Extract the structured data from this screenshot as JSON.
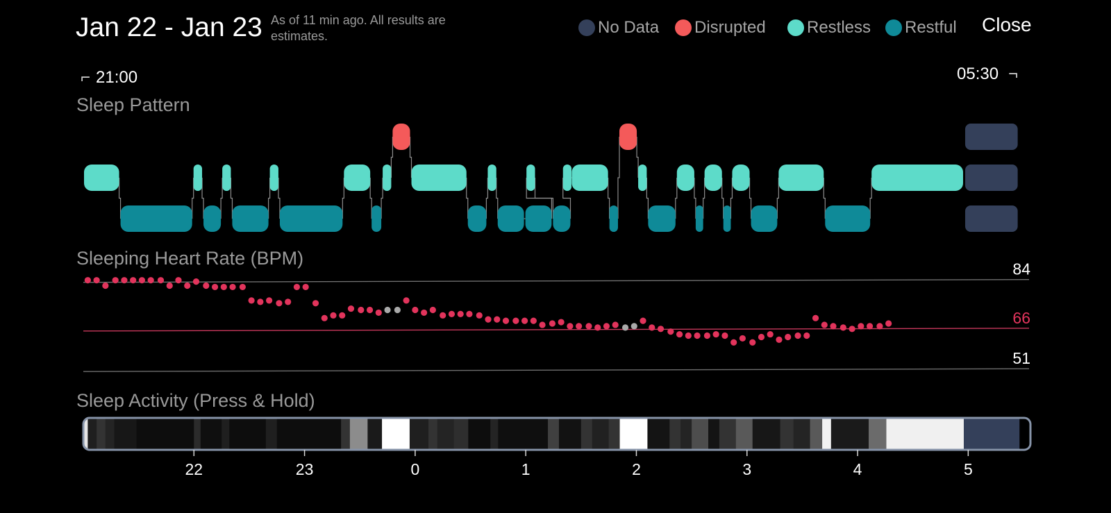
{
  "header": {
    "title": "Jan 22 - Jan 23",
    "subtitle": "As of 11 min ago. All results are estimates.",
    "close_label": "Close"
  },
  "legend": [
    {
      "label": "No Data",
      "color": "#34405a"
    },
    {
      "label": "Disrupted",
      "color": "#f45a5a"
    },
    {
      "label": "Restless",
      "color": "#5ddbc9"
    },
    {
      "label": "Restful",
      "color": "#0f8a98"
    }
  ],
  "time_range": {
    "start": "21:00",
    "end": "05:30"
  },
  "sections": {
    "sleep_pattern": "Sleep Pattern",
    "heart_rate": "Sleeping Heart Rate (BPM)",
    "activity": "Sleep Activity (Press & Hold)"
  },
  "chart_data": [
    {
      "type": "timeline",
      "name": "sleep_pattern",
      "x_unit": "hours after 21:00",
      "xlim": [
        0,
        8.5
      ],
      "levels": [
        "Disrupted",
        "Restless",
        "Restful",
        "No Data"
      ],
      "segments": [
        {
          "state": "Restless",
          "start": 0.0,
          "end": 0.33
        },
        {
          "state": "Restful",
          "start": 0.33,
          "end": 0.99
        },
        {
          "state": "Restless",
          "start": 0.99,
          "end": 1.08
        },
        {
          "state": "Restful",
          "start": 1.08,
          "end": 1.25
        },
        {
          "state": "Restless",
          "start": 1.25,
          "end": 1.34
        },
        {
          "state": "Restful",
          "start": 1.34,
          "end": 1.68
        },
        {
          "state": "Restless",
          "start": 1.68,
          "end": 1.77
        },
        {
          "state": "Restful",
          "start": 1.77,
          "end": 2.35
        },
        {
          "state": "Restless",
          "start": 2.35,
          "end": 2.6
        },
        {
          "state": "Restful",
          "start": 2.6,
          "end": 2.7
        },
        {
          "state": "Restless",
          "start": 2.7,
          "end": 2.79
        },
        {
          "state": "Disrupted",
          "start": 2.79,
          "end": 2.96
        },
        {
          "state": "Restless",
          "start": 2.96,
          "end": 3.47
        },
        {
          "state": "Restful",
          "start": 3.47,
          "end": 3.65
        },
        {
          "state": "Restless",
          "start": 3.65,
          "end": 3.74
        },
        {
          "state": "Restful",
          "start": 3.74,
          "end": 3.99
        },
        {
          "state": "Restful",
          "start": 3.99,
          "end": 4.24
        },
        {
          "state": "Restless",
          "start": 4.0,
          "end": 4.09
        },
        {
          "state": "Restful",
          "start": 4.24,
          "end": 4.41
        },
        {
          "state": "Restless",
          "start": 4.33,
          "end": 4.42
        },
        {
          "state": "Restless",
          "start": 4.41,
          "end": 4.75
        },
        {
          "state": "Restful",
          "start": 4.75,
          "end": 4.84
        },
        {
          "state": "Disrupted",
          "start": 4.84,
          "end": 5.01
        },
        {
          "state": "Restless",
          "start": 5.01,
          "end": 5.1
        },
        {
          "state": "Restful",
          "start": 5.1,
          "end": 5.36
        },
        {
          "state": "Restless",
          "start": 5.36,
          "end": 5.53
        },
        {
          "state": "Restful",
          "start": 5.53,
          "end": 5.61
        },
        {
          "state": "Restless",
          "start": 5.61,
          "end": 5.78
        },
        {
          "state": "Restful",
          "start": 5.78,
          "end": 5.86
        },
        {
          "state": "Restless",
          "start": 5.86,
          "end": 6.03
        },
        {
          "state": "Restful",
          "start": 6.03,
          "end": 6.28
        },
        {
          "state": "Restless",
          "start": 6.28,
          "end": 6.7
        },
        {
          "state": "Restful",
          "start": 6.7,
          "end": 7.12
        },
        {
          "state": "Restless",
          "start": 7.12,
          "end": 7.96
        },
        {
          "state": "No Data",
          "start": 7.96,
          "end": 8.46
        }
      ]
    },
    {
      "type": "scatter",
      "name": "sleeping_heart_rate",
      "x_unit": "hours after 21:00",
      "xlim": [
        0,
        8.5
      ],
      "ylim": [
        49,
        87
      ],
      "reference_lines": [
        {
          "value": 84,
          "label": "84",
          "color": "#6f6f6f"
        },
        {
          "value": 66,
          "label": "66",
          "color": "#c8385c"
        },
        {
          "value": 51,
          "label": "51",
          "color": "#6f6f6f"
        }
      ],
      "colors": {
        "measured": "#e2345c",
        "estimated": "#a9a9a9"
      },
      "points": [
        [
          0.04,
          84
        ],
        [
          0.12,
          84
        ],
        [
          0.2,
          82
        ],
        [
          0.29,
          84
        ],
        [
          0.37,
          84
        ],
        [
          0.45,
          84
        ],
        [
          0.53,
          84
        ],
        [
          0.61,
          84
        ],
        [
          0.7,
          84
        ],
        [
          0.78,
          82
        ],
        [
          0.86,
          84
        ],
        [
          0.94,
          82
        ],
        [
          1.02,
          83.5
        ],
        [
          1.11,
          82
        ],
        [
          1.19,
          81.5
        ],
        [
          1.27,
          81.5
        ],
        [
          1.35,
          81.5
        ],
        [
          1.44,
          81.5
        ],
        [
          1.52,
          76.5
        ],
        [
          1.6,
          76
        ],
        [
          1.68,
          76.5
        ],
        [
          1.77,
          75.5
        ],
        [
          1.85,
          76
        ],
        [
          1.93,
          81.5
        ],
        [
          2.01,
          81.5
        ],
        [
          2.1,
          75.5
        ],
        [
          2.18,
          70
        ],
        [
          2.26,
          71
        ],
        [
          2.34,
          71
        ],
        [
          2.42,
          73.5
        ],
        [
          2.51,
          73
        ],
        [
          2.59,
          73
        ],
        [
          2.67,
          72
        ],
        [
          2.75,
          73,
          "est"
        ],
        [
          2.84,
          73,
          "est"
        ],
        [
          2.92,
          76.5
        ],
        [
          3.0,
          73
        ],
        [
          3.08,
          72
        ],
        [
          3.16,
          73
        ],
        [
          3.25,
          71
        ],
        [
          3.33,
          71.5
        ],
        [
          3.41,
          71.5
        ],
        [
          3.49,
          71.5
        ],
        [
          3.58,
          71
        ],
        [
          3.66,
          69.5
        ],
        [
          3.74,
          69.5
        ],
        [
          3.82,
          69
        ],
        [
          3.91,
          69
        ],
        [
          3.99,
          69
        ],
        [
          4.07,
          69
        ],
        [
          4.15,
          67.5
        ],
        [
          4.24,
          68
        ],
        [
          4.32,
          68.5
        ],
        [
          4.4,
          67
        ],
        [
          4.48,
          67
        ],
        [
          4.57,
          67
        ],
        [
          4.65,
          66.5
        ],
        [
          4.73,
          67
        ],
        [
          4.81,
          67.5
        ],
        [
          4.9,
          66.5,
          "est"
        ],
        [
          4.98,
          67,
          "est"
        ],
        [
          5.06,
          69
        ],
        [
          5.14,
          66.5
        ],
        [
          5.22,
          66
        ],
        [
          5.31,
          65
        ],
        [
          5.39,
          64
        ],
        [
          5.47,
          63.5
        ],
        [
          5.55,
          63.5
        ],
        [
          5.64,
          63.5
        ],
        [
          5.72,
          64
        ],
        [
          5.8,
          63.5
        ],
        [
          5.88,
          61
        ],
        [
          5.96,
          62.5
        ],
        [
          6.05,
          61
        ],
        [
          6.13,
          63
        ],
        [
          6.21,
          64
        ],
        [
          6.29,
          62
        ],
        [
          6.37,
          63
        ],
        [
          6.46,
          63.5
        ],
        [
          6.54,
          63.5
        ],
        [
          6.62,
          70
        ],
        [
          6.7,
          67.5
        ],
        [
          6.78,
          67
        ],
        [
          6.87,
          66.5
        ],
        [
          6.95,
          66
        ],
        [
          7.03,
          67
        ],
        [
          7.11,
          67
        ],
        [
          7.2,
          67
        ],
        [
          7.28,
          68
        ]
      ]
    },
    {
      "type": "heatmap",
      "name": "sleep_activity",
      "x_unit": "hours after 21:00",
      "xlim": [
        0,
        8.5
      ],
      "x_ticks": [
        {
          "value": 1.0,
          "label": "22"
        },
        {
          "value": 2.0,
          "label": "23"
        },
        {
          "value": 3.0,
          "label": "0"
        },
        {
          "value": 4.0,
          "label": "1"
        },
        {
          "value": 5.0,
          "label": "2"
        },
        {
          "value": 6.0,
          "label": "3"
        },
        {
          "value": 7.0,
          "label": "4"
        },
        {
          "value": 8.0,
          "label": "5"
        }
      ],
      "no_data_color": "#34405a",
      "cells": [
        [
          0.0,
          0.04,
          0.9
        ],
        [
          0.04,
          0.12,
          0.12
        ],
        [
          0.12,
          0.2,
          0.2
        ],
        [
          0.2,
          0.28,
          0.14
        ],
        [
          0.28,
          0.48,
          0.09
        ],
        [
          0.48,
          1.0,
          0.05
        ],
        [
          1.0,
          1.06,
          0.17
        ],
        [
          1.06,
          1.25,
          0.06
        ],
        [
          1.25,
          1.32,
          0.12
        ],
        [
          1.32,
          1.65,
          0.05
        ],
        [
          1.65,
          1.75,
          0.12
        ],
        [
          1.75,
          2.33,
          0.05
        ],
        [
          2.33,
          2.41,
          0.2
        ],
        [
          2.41,
          2.57,
          0.55
        ],
        [
          2.57,
          2.7,
          0.1
        ],
        [
          2.7,
          2.95,
          1.0
        ],
        [
          2.95,
          3.12,
          0.12
        ],
        [
          3.12,
          3.2,
          0.2
        ],
        [
          3.2,
          3.35,
          0.14
        ],
        [
          3.35,
          3.48,
          0.18
        ],
        [
          3.48,
          3.68,
          0.05
        ],
        [
          3.68,
          3.75,
          0.14
        ],
        [
          3.75,
          4.2,
          0.06
        ],
        [
          4.2,
          4.3,
          0.25
        ],
        [
          4.3,
          4.5,
          0.07
        ],
        [
          4.5,
          4.6,
          0.2
        ],
        [
          4.6,
          4.75,
          0.13
        ],
        [
          4.75,
          4.85,
          0.2
        ],
        [
          4.85,
          5.1,
          1.0
        ],
        [
          5.1,
          5.3,
          0.08
        ],
        [
          5.3,
          5.4,
          0.2
        ],
        [
          5.4,
          5.5,
          0.14
        ],
        [
          5.5,
          5.65,
          0.3
        ],
        [
          5.65,
          5.75,
          0.08
        ],
        [
          5.75,
          5.9,
          0.2
        ],
        [
          5.9,
          6.05,
          0.35
        ],
        [
          6.05,
          6.3,
          0.09
        ],
        [
          6.3,
          6.42,
          0.2
        ],
        [
          6.42,
          6.57,
          0.14
        ],
        [
          6.57,
          6.68,
          0.35
        ],
        [
          6.68,
          6.76,
          0.95
        ],
        [
          6.76,
          7.1,
          0.1
        ],
        [
          7.1,
          7.26,
          0.42
        ],
        [
          7.26,
          7.96,
          0.94
        ],
        [
          7.96,
          8.46,
          "none"
        ]
      ]
    }
  ]
}
